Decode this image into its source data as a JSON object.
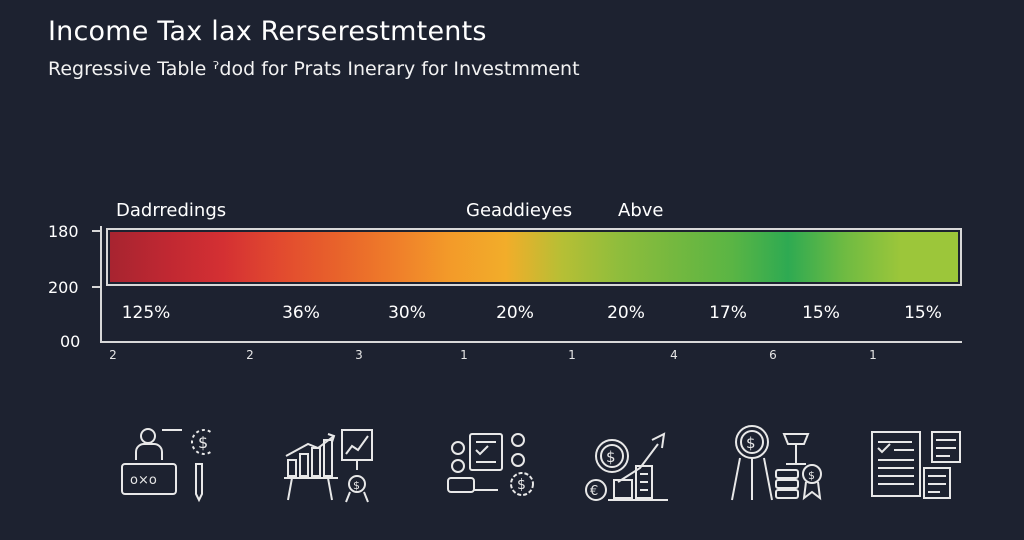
{
  "title": "Income Tax lax Rerserestmtents",
  "subtitle": "Regressive Table ˀdod for Prats Inerary for Investmment",
  "headers": [
    "Dadrredings",
    "Geaddieyes",
    "Abve"
  ],
  "y_labels": [
    "180",
    "200",
    "00"
  ],
  "chart_data": {
    "type": "bar",
    "orientation": "horizontal-gradient",
    "percent_labels": [
      "125%",
      "36%",
      "30%",
      "20%",
      "20%",
      "17%",
      "15%",
      "15%"
    ],
    "counts": [
      "2",
      "2",
      "3",
      "1",
      "1",
      "4",
      "6",
      "1"
    ],
    "segment_colors": [
      "#a72430",
      "#c02832",
      "#d43033",
      "#e24a2f",
      "#e8622b",
      "#ef7d2a",
      "#f39a29",
      "#f2ad2a",
      "#b6bf35",
      "#8fbd3c",
      "#74b83f",
      "#5ab544",
      "#2eaa52",
      "#6fbb42",
      "#9cc63a"
    ],
    "legend": "none"
  },
  "icons": [
    "presenter-icon",
    "growth-chart-icon",
    "checklist-icon",
    "coins-chart-icon",
    "award-scale-icon",
    "documents-icon"
  ]
}
